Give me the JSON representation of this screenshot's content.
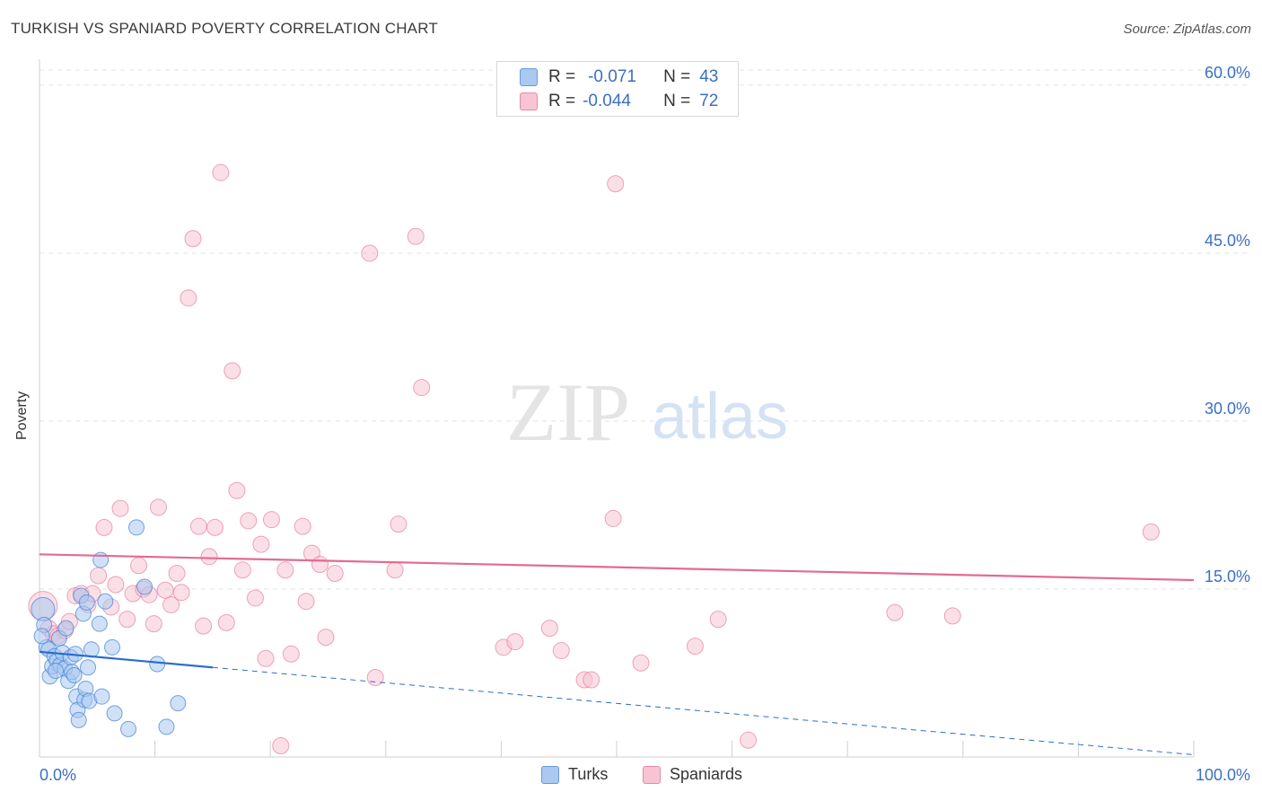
{
  "title": "TURKISH VS SPANIARD POVERTY CORRELATION CHART",
  "source": "Source: ZipAtlas.com",
  "watermark": {
    "zip": "ZIP",
    "atlas": "atlas"
  },
  "legend_top": {
    "rows": [
      {
        "r_label": "R =",
        "r_value": "-0.071",
        "n_label": "N =",
        "n_value": "43",
        "swatch": "#aac8f0",
        "swatch_border": "#6a9ad8"
      },
      {
        "r_label": "R =",
        "r_value": "-0.044",
        "n_label": "N =",
        "n_value": "72",
        "swatch": "#f8c4d4",
        "swatch_border": "#e58aa8"
      }
    ]
  },
  "legend_bottom": [
    {
      "label": "Turks",
      "swatch": "#aac8f0",
      "swatch_border": "#6a9ad8"
    },
    {
      "label": "Spaniards",
      "swatch": "#f8c4d4",
      "swatch_border": "#e58aa8"
    }
  ],
  "chart_data": {
    "type": "scatter",
    "title": "TURKISH VS SPANIARD POVERTY CORRELATION CHART",
    "xlabel": "",
    "ylabel": "Poverty",
    "xlim": [
      0,
      100
    ],
    "ylim": [
      0,
      62
    ],
    "x_tick_labels": [
      {
        "value": 0,
        "label": "0.0%"
      },
      {
        "value": 100,
        "label": "100.0%"
      }
    ],
    "y_tick_labels": [
      {
        "value": 15,
        "label": "15.0%"
      },
      {
        "value": 30,
        "label": "30.0%"
      },
      {
        "value": 45,
        "label": "45.0%"
      },
      {
        "value": 60,
        "label": "60.0%"
      }
    ],
    "colors": {
      "turks": "#4a86d8",
      "turks_fill": "#aac8f0",
      "spaniards": "#e36a93",
      "spaniards_fill": "#f8c4d4",
      "tick_label": "#3a6fc4",
      "grid": "#e2e2e2"
    },
    "series": [
      {
        "name": "Turks",
        "trend": {
          "x0": 0,
          "y0": 9.4,
          "x1": 15,
          "y1": 8.0,
          "dash_to_x": 100,
          "dash_to_y": 0.2
        },
        "points": [
          [
            0.3,
            13.2
          ],
          [
            0.4,
            11.8
          ],
          [
            0.6,
            9.8
          ],
          [
            0.8,
            9.6
          ],
          [
            0.9,
            7.2
          ],
          [
            1.1,
            8.1
          ],
          [
            1.3,
            9.0
          ],
          [
            1.5,
            8.6
          ],
          [
            1.7,
            10.6
          ],
          [
            1.8,
            8.2
          ],
          [
            2.0,
            9.3
          ],
          [
            2.2,
            7.9
          ],
          [
            2.3,
            11.5
          ],
          [
            2.5,
            6.8
          ],
          [
            2.7,
            8.9
          ],
          [
            2.8,
            7.6
          ],
          [
            3.0,
            7.3
          ],
          [
            3.1,
            9.2
          ],
          [
            3.2,
            5.4
          ],
          [
            3.3,
            4.2
          ],
          [
            3.4,
            3.3
          ],
          [
            3.6,
            14.4
          ],
          [
            3.8,
            12.8
          ],
          [
            3.9,
            5.1
          ],
          [
            4.0,
            6.1
          ],
          [
            4.1,
            13.8
          ],
          [
            4.2,
            8.0
          ],
          [
            4.3,
            5.0
          ],
          [
            4.5,
            9.6
          ],
          [
            5.2,
            11.9
          ],
          [
            5.3,
            17.6
          ],
          [
            5.4,
            5.4
          ],
          [
            5.7,
            13.9
          ],
          [
            6.3,
            9.8
          ],
          [
            6.5,
            3.9
          ],
          [
            7.7,
            2.5
          ],
          [
            8.4,
            20.5
          ],
          [
            9.1,
            15.2
          ],
          [
            10.2,
            8.3
          ],
          [
            11.0,
            2.7
          ],
          [
            12.0,
            4.8
          ],
          [
            0.2,
            10.8
          ],
          [
            1.4,
            7.7
          ]
        ]
      },
      {
        "name": "Spaniards",
        "trend": {
          "x0": 0,
          "y0": 18.1,
          "x1": 100,
          "y1": 15.8
        },
        "points": [
          [
            0.3,
            13.5
          ],
          [
            0.8,
            11.5
          ],
          [
            1.2,
            11.0
          ],
          [
            1.6,
            10.8
          ],
          [
            2.2,
            11.3
          ],
          [
            2.6,
            12.1
          ],
          [
            3.1,
            14.4
          ],
          [
            3.6,
            14.6
          ],
          [
            4.2,
            13.6
          ],
          [
            4.6,
            14.6
          ],
          [
            5.1,
            16.2
          ],
          [
            5.6,
            20.5
          ],
          [
            6.2,
            13.4
          ],
          [
            6.6,
            15.4
          ],
          [
            7.0,
            22.2
          ],
          [
            7.6,
            12.3
          ],
          [
            8.1,
            14.6
          ],
          [
            8.6,
            17.1
          ],
          [
            9.0,
            15.0
          ],
          [
            9.5,
            14.5
          ],
          [
            9.9,
            11.9
          ],
          [
            10.3,
            22.3
          ],
          [
            10.9,
            14.9
          ],
          [
            11.4,
            13.6
          ],
          [
            11.9,
            16.4
          ],
          [
            12.3,
            14.7
          ],
          [
            12.9,
            41.0
          ],
          [
            13.3,
            46.3
          ],
          [
            13.8,
            20.6
          ],
          [
            14.2,
            11.7
          ],
          [
            14.7,
            17.9
          ],
          [
            15.2,
            20.5
          ],
          [
            15.7,
            52.2
          ],
          [
            16.2,
            12.0
          ],
          [
            16.7,
            34.5
          ],
          [
            17.1,
            23.8
          ],
          [
            17.6,
            16.7
          ],
          [
            18.1,
            21.1
          ],
          [
            18.7,
            14.2
          ],
          [
            19.2,
            19.0
          ],
          [
            19.6,
            8.8
          ],
          [
            20.1,
            21.2
          ],
          [
            20.9,
            1.0
          ],
          [
            21.3,
            16.7
          ],
          [
            21.8,
            9.2
          ],
          [
            22.8,
            20.6
          ],
          [
            23.1,
            13.9
          ],
          [
            23.6,
            18.2
          ],
          [
            24.3,
            17.2
          ],
          [
            24.8,
            10.7
          ],
          [
            25.6,
            16.4
          ],
          [
            28.6,
            45.0
          ],
          [
            29.1,
            7.1
          ],
          [
            30.8,
            16.7
          ],
          [
            31.1,
            20.8
          ],
          [
            32.6,
            46.5
          ],
          [
            33.1,
            33.0
          ],
          [
            40.2,
            9.8
          ],
          [
            41.2,
            10.3
          ],
          [
            44.2,
            11.5
          ],
          [
            45.2,
            9.5
          ],
          [
            47.2,
            6.9
          ],
          [
            47.8,
            6.9
          ],
          [
            49.9,
            51.2
          ],
          [
            49.7,
            21.3
          ],
          [
            52.1,
            8.4
          ],
          [
            56.8,
            9.9
          ],
          [
            58.8,
            12.3
          ],
          [
            61.4,
            1.5
          ],
          [
            74.1,
            12.9
          ],
          [
            79.1,
            12.6
          ],
          [
            96.3,
            20.1
          ]
        ]
      }
    ]
  }
}
